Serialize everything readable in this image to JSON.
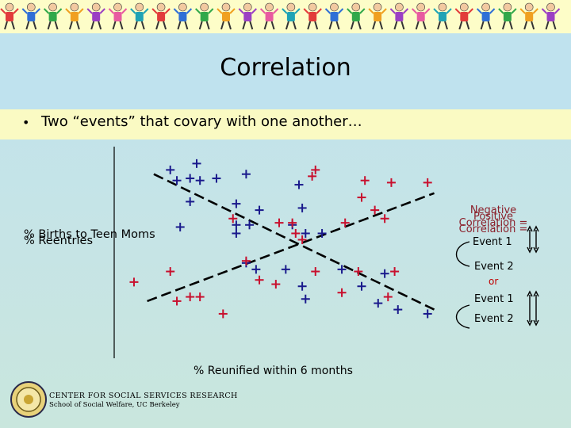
{
  "title": "Correlation",
  "bullet": "Two “events” that covary with one another…",
  "chart_data": {
    "type": "scatter",
    "ylabels": [
      "% Births to Teen Moms",
      "% Reentries"
    ],
    "xlabel": "% Reunified within 6 months",
    "axis_range_note": "no numeric tick labels printed",
    "series": [
      {
        "color": "#1a1a8c",
        "points": [
          [
            0.25,
            0.92
          ],
          [
            0.17,
            0.89
          ],
          [
            0.19,
            0.84
          ],
          [
            0.23,
            0.85
          ],
          [
            0.26,
            0.84
          ],
          [
            0.31,
            0.85
          ],
          [
            0.4,
            0.87
          ],
          [
            0.56,
            0.82
          ],
          [
            0.23,
            0.74
          ],
          [
            0.37,
            0.73
          ],
          [
            0.57,
            0.71
          ],
          [
            0.44,
            0.7
          ],
          [
            0.2,
            0.62
          ],
          [
            0.37,
            0.63
          ],
          [
            0.41,
            0.63
          ],
          [
            0.54,
            0.63
          ],
          [
            0.58,
            0.59
          ],
          [
            0.63,
            0.59
          ],
          [
            0.37,
            0.59
          ],
          [
            0.4,
            0.45
          ],
          [
            0.43,
            0.42
          ],
          [
            0.52,
            0.42
          ],
          [
            0.69,
            0.42
          ],
          [
            0.82,
            0.4
          ],
          [
            0.57,
            0.34
          ],
          [
            0.75,
            0.34
          ],
          [
            0.58,
            0.28
          ],
          [
            0.8,
            0.26
          ],
          [
            0.86,
            0.23
          ],
          [
            0.95,
            0.21
          ]
        ]
      },
      {
        "color": "#c8102e",
        "points": [
          [
            0.61,
            0.89
          ],
          [
            0.6,
            0.86
          ],
          [
            0.76,
            0.84
          ],
          [
            0.84,
            0.83
          ],
          [
            0.95,
            0.83
          ],
          [
            0.75,
            0.76
          ],
          [
            0.79,
            0.7
          ],
          [
            0.82,
            0.66
          ],
          [
            0.36,
            0.66
          ],
          [
            0.5,
            0.64
          ],
          [
            0.54,
            0.64
          ],
          [
            0.7,
            0.64
          ],
          [
            0.55,
            0.59
          ],
          [
            0.57,
            0.56
          ],
          [
            0.4,
            0.46
          ],
          [
            0.61,
            0.41
          ],
          [
            0.74,
            0.41
          ],
          [
            0.85,
            0.41
          ],
          [
            0.17,
            0.41
          ],
          [
            0.44,
            0.37
          ],
          [
            0.49,
            0.35
          ],
          [
            0.06,
            0.36
          ],
          [
            0.69,
            0.31
          ],
          [
            0.83,
            0.29
          ],
          [
            0.19,
            0.27
          ],
          [
            0.23,
            0.29
          ],
          [
            0.26,
            0.29
          ],
          [
            0.33,
            0.21
          ]
        ]
      }
    ],
    "trendlines": [
      {
        "from": [
          0.12,
          0.87
        ],
        "to": [
          0.97,
          0.23
        ]
      },
      {
        "from": [
          0.1,
          0.27
        ],
        "to": [
          0.97,
          0.78
        ]
      }
    ]
  },
  "correlation_label": {
    "overlap_a": "Negative Correlation =",
    "overlap_b": "Positive Correlation ="
  },
  "events": {
    "event1a": "Event 1",
    "event2a": "Event 2",
    "or": "or",
    "event1b": "Event 1",
    "event2b": "Event 2"
  },
  "footer": {
    "line1": "CENTER FOR SOCIAL SERVICES RESEARCH",
    "line2": "School of Social Welfare, UC Berkeley"
  },
  "colors": {
    "negative_series": "#1a1a8c",
    "positive_series": "#c8102e",
    "label_red": "#8b1f2a",
    "banner": "#fdfdc8",
    "bullet_band": "#fafac3"
  }
}
